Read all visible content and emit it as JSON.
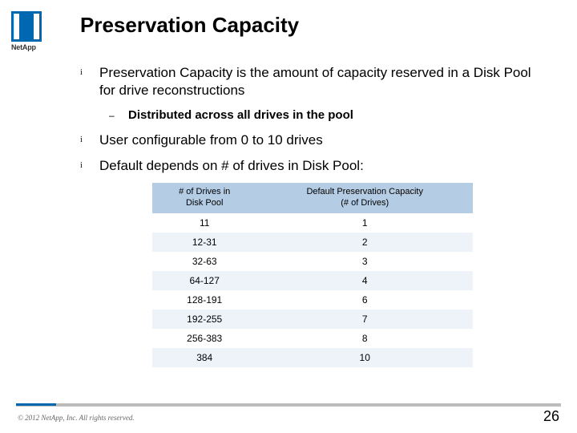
{
  "logo": {
    "text": "NetApp"
  },
  "title": "Preservation Capacity",
  "bullets": [
    {
      "text": "Preservation Capacity is the amount of capacity reserved in a Disk Pool for drive reconstructions",
      "sub": "Distributed across all drives in the pool"
    },
    {
      "text": "User configurable from 0 to 10 drives"
    },
    {
      "text": "Default depends on # of drives in Disk Pool:"
    }
  ],
  "table": {
    "headers": {
      "h1_l1": "# of Drives in",
      "h1_l2": "Disk Pool",
      "h2_l1": "Default Preservation Capacity",
      "h2_l2": "(# of Drives)"
    },
    "rows": [
      {
        "c1": "11",
        "c2": "1"
      },
      {
        "c1": "12-31",
        "c2": "2"
      },
      {
        "c1": "32-63",
        "c2": "3"
      },
      {
        "c1": "64-127",
        "c2": "4"
      },
      {
        "c1": "128-191",
        "c2": "6"
      },
      {
        "c1": "192-255",
        "c2": "7"
      },
      {
        "c1": "256-383",
        "c2": "8"
      },
      {
        "c1": "384",
        "c2": "10"
      }
    ]
  },
  "footer": {
    "copyright": "© 2012 NetApp, Inc. All rights reserved.",
    "page": "26"
  },
  "colors": {
    "brand": "#0067b1",
    "table_header_bg": "#b5cde4",
    "table_row_alt": "#eef3f9",
    "rule_gray": "#bcbcbc"
  }
}
